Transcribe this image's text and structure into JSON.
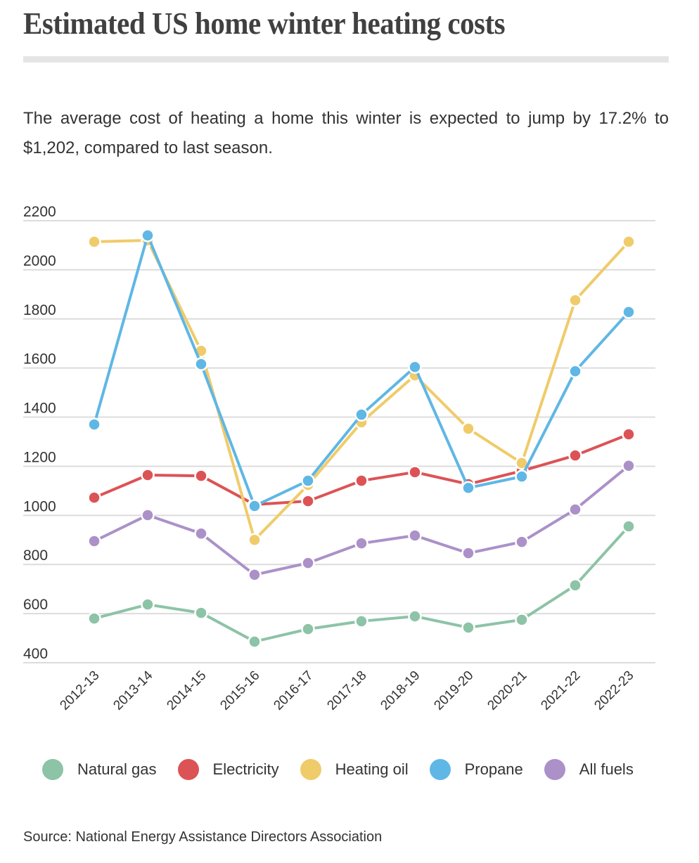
{
  "header": {
    "title": "Estimated US home winter heating costs",
    "subtitle": "The average cost of heating a home this winter is expected to jump by 17.2% to $1,202, compared to last season."
  },
  "source": "Source: National Energy Assistance Directors Association",
  "chart_data": {
    "type": "line",
    "title": "Estimated US home winter heating costs",
    "xlabel": "",
    "ylabel": "",
    "ylim": [
      400,
      2200
    ],
    "yticks": [
      2200,
      2000,
      1800,
      1600,
      1400,
      1200,
      1000,
      800,
      600,
      400
    ],
    "grid": true,
    "legend_position": "bottom",
    "categories": [
      "2012-13",
      "2013-14",
      "2014-15",
      "2015-16",
      "2016-17",
      "2017-18",
      "2018-19",
      "2019-20",
      "2020-21",
      "2021-22",
      "2022-23"
    ],
    "series": [
      {
        "name": "Natural gas",
        "color": "#8dc3a7",
        "values": [
          580,
          637,
          603,
          486,
          537,
          569,
          589,
          543,
          575,
          715,
          955
        ]
      },
      {
        "name": "Electricity",
        "color": "#dc5356",
        "values": [
          1072,
          1164,
          1161,
          1044,
          1058,
          1141,
          1176,
          1127,
          1181,
          1244,
          1330
        ]
      },
      {
        "name": "Heating oil",
        "color": "#f0cb6a",
        "values": [
          2114,
          2120,
          1670,
          900,
          1124,
          1379,
          1570,
          1353,
          1213,
          1876,
          2114
        ]
      },
      {
        "name": "Propane",
        "color": "#5fb7e5",
        "values": [
          1370,
          2140,
          1616,
          1038,
          1141,
          1410,
          1604,
          1112,
          1158,
          1587,
          1828
        ]
      },
      {
        "name": "All fuels",
        "color": "#ab91c8",
        "values": [
          895,
          1001,
          926,
          758,
          806,
          886,
          918,
          846,
          892,
          1024,
          1202
        ]
      }
    ]
  }
}
